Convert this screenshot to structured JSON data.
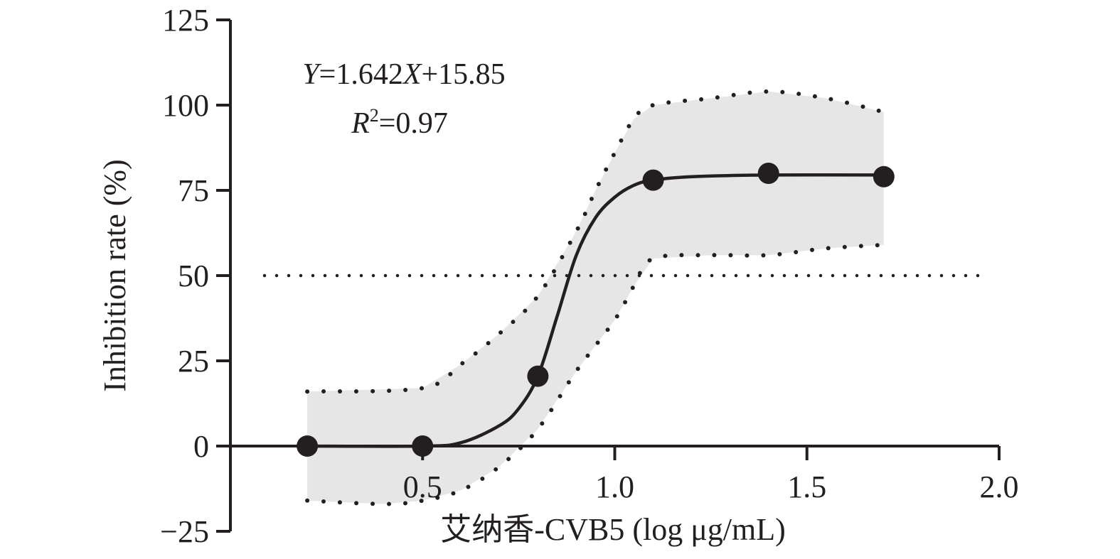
{
  "chart_data": {
    "type": "scatter",
    "xlabel": "艾纳香-CVB5 (log μg/mL)",
    "ylabel": "Inhibition rate (%)",
    "xlim": [
      0.0,
      2.0
    ],
    "ylim": [
      -25,
      125
    ],
    "x_ticks": [
      0.5,
      1.0,
      1.5,
      2.0
    ],
    "x_tick_labels": [
      "0.5",
      "1.0",
      "1.5",
      "2.0"
    ],
    "y_ticks": [
      -25,
      0,
      25,
      50,
      75,
      100,
      125
    ],
    "y_tick_labels": [
      "−25",
      "0",
      "25",
      "50",
      "75",
      "100",
      "125"
    ],
    "grid": false,
    "legend": "none",
    "equation": {
      "y_var": "Y",
      "eq_mid": "=1.642",
      "x_var": "X",
      "eq_tail": "+15.85",
      "r_var": "R",
      "r_sup": "2",
      "r_tail": "=0.97"
    },
    "series": [
      {
        "points": [
          {
            "x": 0.2,
            "y": 0
          },
          {
            "x": 0.5,
            "y": 0
          },
          {
            "x": 0.8,
            "y": 20.5
          },
          {
            "x": 1.1,
            "y": 78
          },
          {
            "x": 1.4,
            "y": 80
          },
          {
            "x": 1.7,
            "y": 79
          }
        ],
        "fit_curve": [
          {
            "x": 0.2,
            "y": 0
          },
          {
            "x": 0.5,
            "y": 0
          },
          {
            "x": 0.6,
            "y": 1
          },
          {
            "x": 0.7,
            "y": 6
          },
          {
            "x": 0.75,
            "y": 11
          },
          {
            "x": 0.8,
            "y": 20.5
          },
          {
            "x": 0.85,
            "y": 38
          },
          {
            "x": 0.9,
            "y": 56
          },
          {
            "x": 0.95,
            "y": 67
          },
          {
            "x": 1.0,
            "y": 73
          },
          {
            "x": 1.05,
            "y": 76.5
          },
          {
            "x": 1.1,
            "y": 78
          },
          {
            "x": 1.2,
            "y": 79
          },
          {
            "x": 1.4,
            "y": 79.5
          },
          {
            "x": 1.7,
            "y": 79.5
          }
        ],
        "ci_upper": [
          {
            "x": 0.2,
            "y": 16
          },
          {
            "x": 0.5,
            "y": 17
          },
          {
            "x": 0.6,
            "y": 24
          },
          {
            "x": 0.7,
            "y": 33
          },
          {
            "x": 0.8,
            "y": 44
          },
          {
            "x": 0.9,
            "y": 63
          },
          {
            "x": 0.95,
            "y": 75
          },
          {
            "x": 1.0,
            "y": 86
          },
          {
            "x": 1.05,
            "y": 96
          },
          {
            "x": 1.1,
            "y": 100
          },
          {
            "x": 1.25,
            "y": 102
          },
          {
            "x": 1.4,
            "y": 104
          },
          {
            "x": 1.55,
            "y": 102
          },
          {
            "x": 1.7,
            "y": 98
          }
        ],
        "ci_lower": [
          {
            "x": 0.2,
            "y": -16
          },
          {
            "x": 0.4,
            "y": -17
          },
          {
            "x": 0.5,
            "y": -16
          },
          {
            "x": 0.6,
            "y": -13
          },
          {
            "x": 0.7,
            "y": -6
          },
          {
            "x": 0.8,
            "y": 5
          },
          {
            "x": 0.9,
            "y": 22
          },
          {
            "x": 1.0,
            "y": 37
          },
          {
            "x": 1.05,
            "y": 47
          },
          {
            "x": 1.1,
            "y": 55
          },
          {
            "x": 1.25,
            "y": 56
          },
          {
            "x": 1.4,
            "y": 56
          },
          {
            "x": 1.55,
            "y": 58
          },
          {
            "x": 1.7,
            "y": 59
          }
        ]
      }
    ],
    "reference_line": {
      "y": 50,
      "style": "dotted"
    },
    "colors": {
      "ink": "#231f20",
      "band": "#e6e6e6"
    }
  }
}
